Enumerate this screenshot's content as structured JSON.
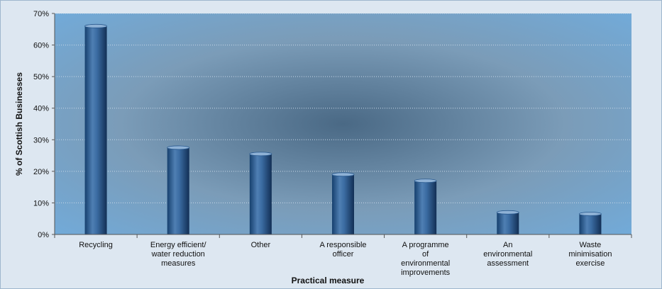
{
  "chart_data": {
    "type": "bar",
    "title": "",
    "xlabel": "Practical measure",
    "ylabel": "% of Scottish Businesses",
    "ylim": [
      0,
      70
    ],
    "yticks": [
      "0%",
      "10%",
      "20%",
      "30%",
      "40%",
      "50%",
      "60%",
      "70%"
    ],
    "grid": true,
    "categories": [
      [
        "Recycling"
      ],
      [
        "Energy efficient/",
        "water reduction",
        "measures"
      ],
      [
        "Other"
      ],
      [
        "A responsible",
        "officer"
      ],
      [
        "A programme",
        "of",
        "environmental",
        "improvements"
      ],
      [
        "An",
        "environmental",
        "assessment"
      ],
      [
        "Waste",
        "minimisation",
        "exercise"
      ]
    ],
    "values": [
      66,
      27.5,
      25.5,
      19,
      17,
      7,
      6.5
    ],
    "colors": {
      "bar": "#1d4f86",
      "bar_highlight": "#8fb2d6",
      "plot_center": "#5f7f9c",
      "plot_edge": "#6ea6d6",
      "grid": "#c8d8e8",
      "axis": "#555555"
    }
  }
}
